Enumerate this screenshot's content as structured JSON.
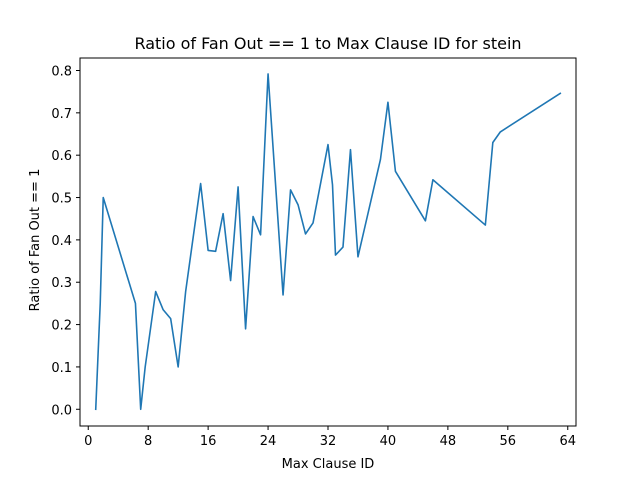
{
  "chart_data": {
    "type": "line",
    "title": "Ratio of Fan Out == 1 to Max Clause ID for stein",
    "xlabel": "Max Clause ID",
    "ylabel": "Ratio of Fan Out == 1",
    "xlim": [
      -1.1,
      65.1
    ],
    "ylim": [
      -0.0395,
      0.8295
    ],
    "xticks": [
      0,
      8,
      16,
      24,
      32,
      40,
      48,
      56,
      64
    ],
    "yticks": [
      0.0,
      0.1,
      0.2,
      0.3,
      0.4,
      0.5,
      0.6,
      0.7,
      0.8
    ],
    "ytick_labels": [
      "0.0",
      "0.1",
      "0.2",
      "0.3",
      "0.4",
      "0.5",
      "0.6",
      "0.7",
      "0.8"
    ],
    "grid": false,
    "line_color": "#1f77b4",
    "series": [
      {
        "x": [
          1,
          1.6,
          2,
          6.3,
          7,
          7.6,
          9,
          10,
          11,
          12,
          13,
          15,
          16,
          17,
          18,
          19,
          20,
          21,
          22,
          23,
          24,
          26,
          27,
          28,
          29,
          30,
          32,
          32.6,
          33,
          34,
          35,
          36,
          39,
          40,
          41,
          45,
          46,
          53,
          54,
          55,
          63
        ],
        "y": [
          0.0,
          0.25,
          0.5,
          0.25,
          0.0,
          0.1,
          0.278,
          0.235,
          0.214,
          0.1,
          0.278,
          0.533,
          0.375,
          0.373,
          0.462,
          0.304,
          0.525,
          0.19,
          0.455,
          0.412,
          0.792,
          0.27,
          0.518,
          0.483,
          0.414,
          0.44,
          0.625,
          0.53,
          0.364,
          0.383,
          0.613,
          0.36,
          0.59,
          0.725,
          0.562,
          0.445,
          0.542,
          0.435,
          0.63,
          0.655,
          0.746
        ]
      }
    ]
  }
}
